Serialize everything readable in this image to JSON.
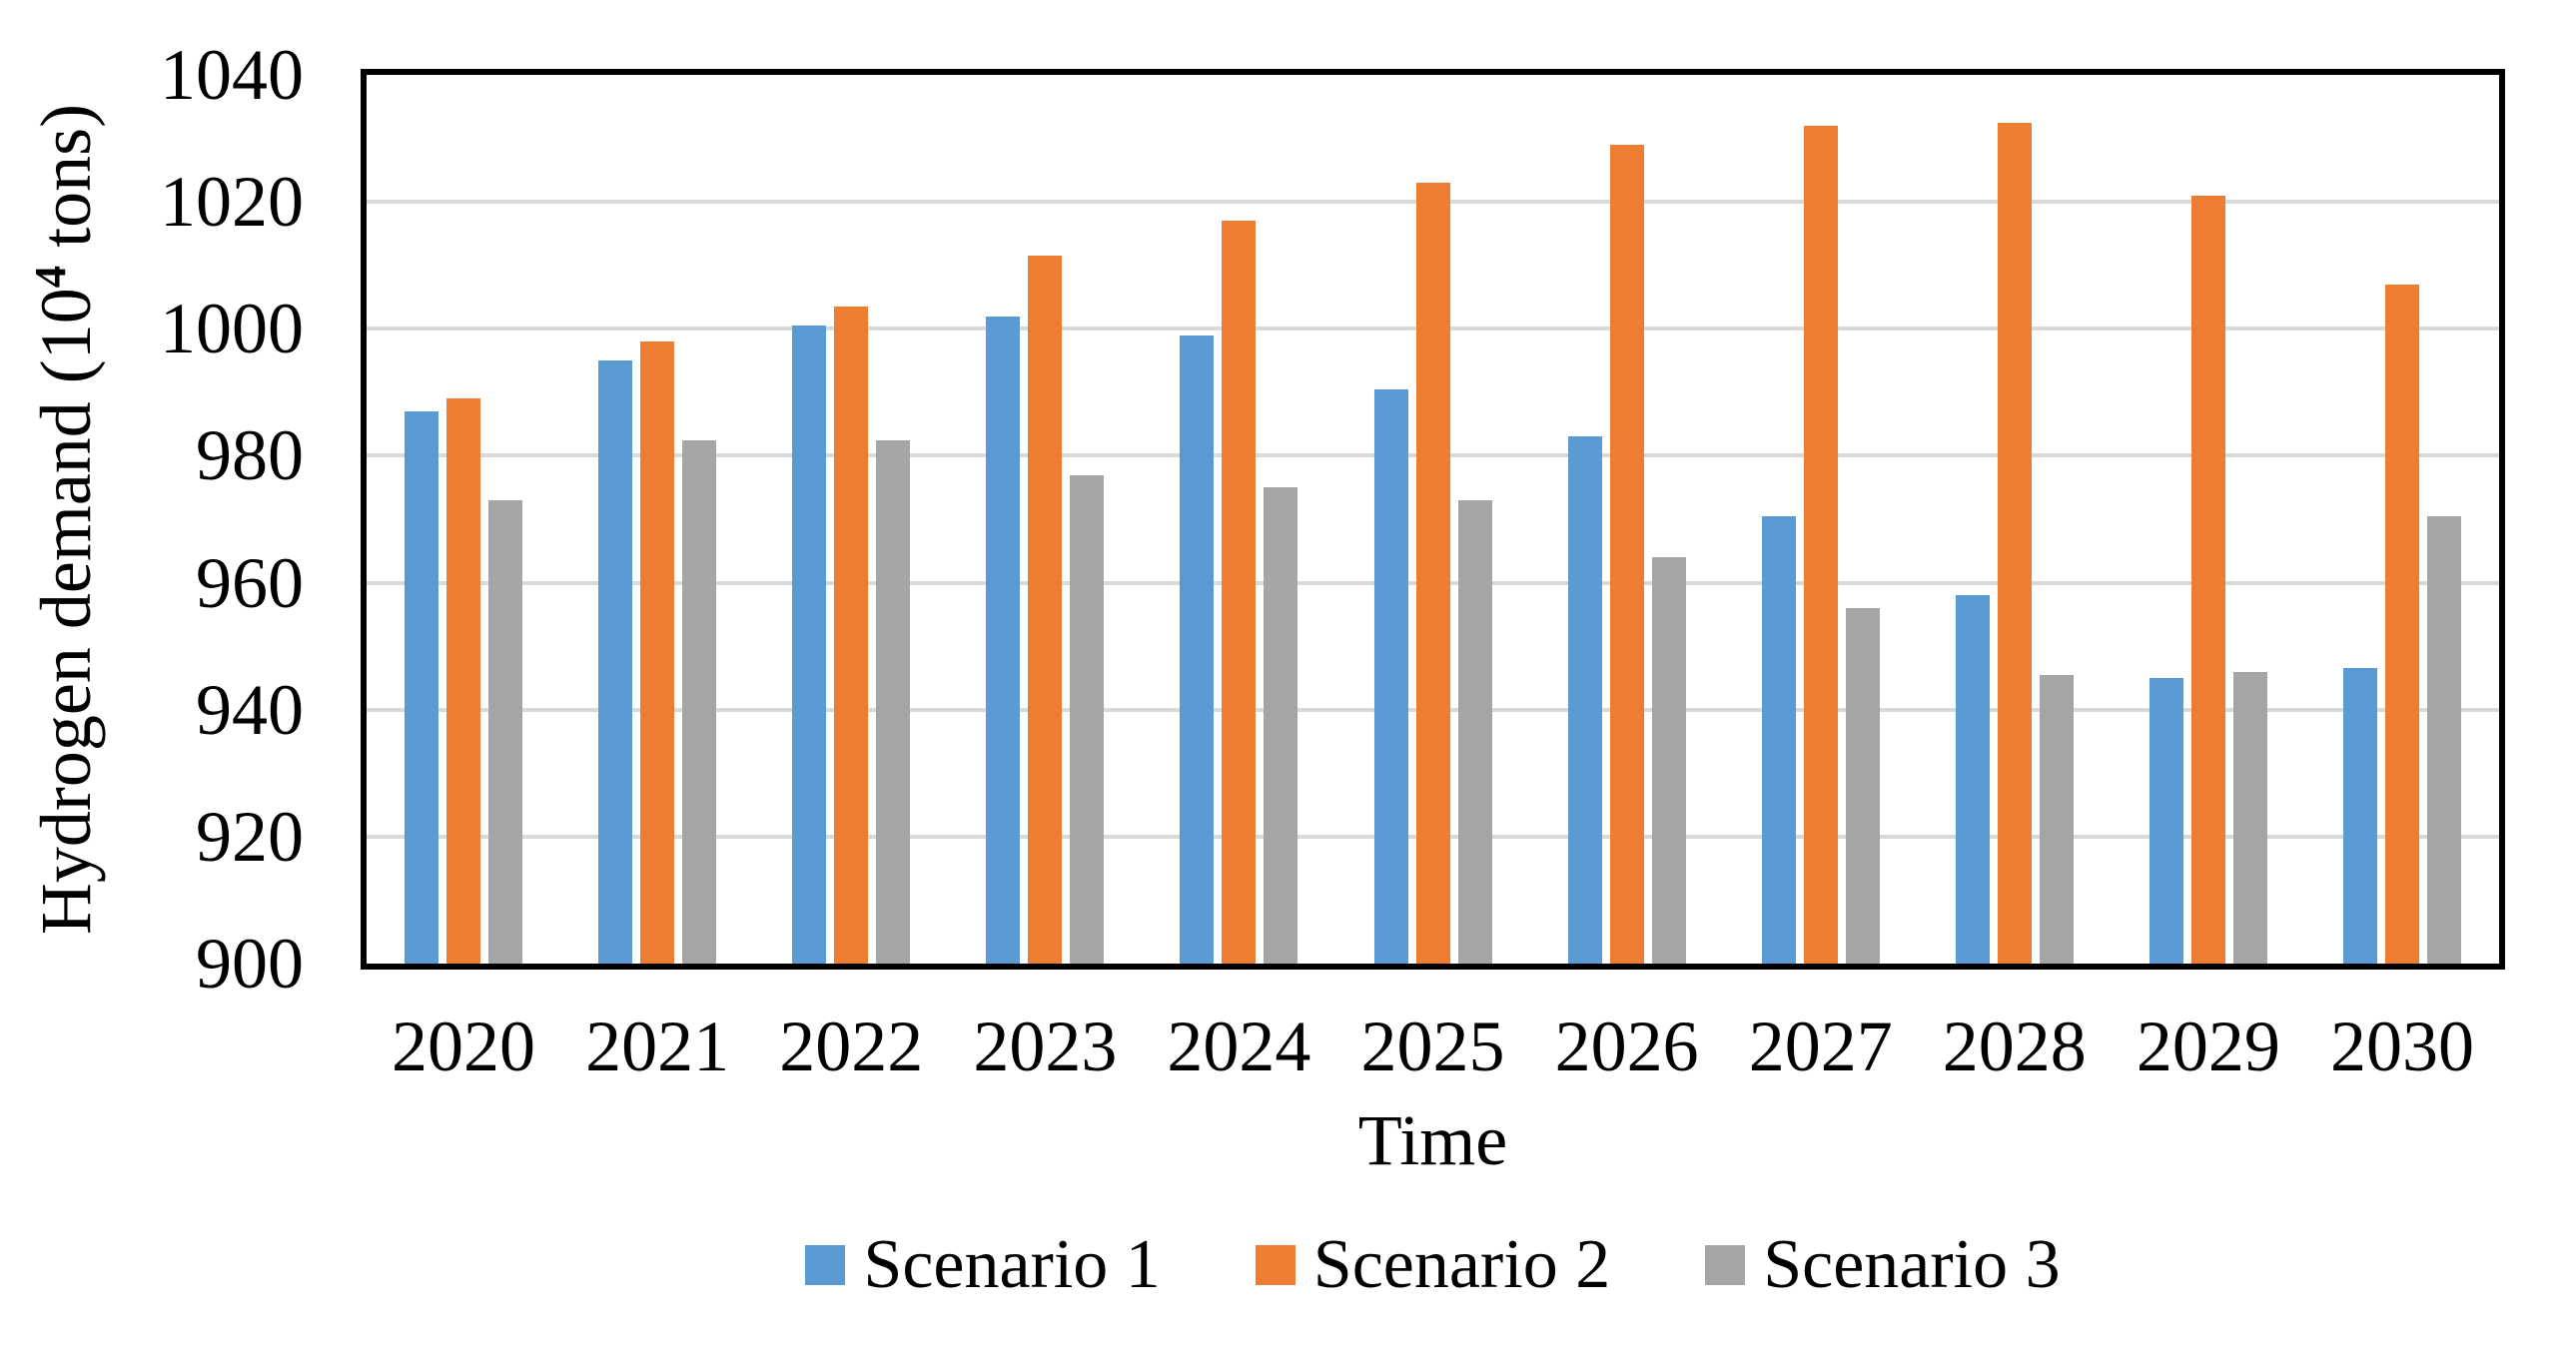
{
  "chart_data": {
    "type": "bar",
    "title": "",
    "xlabel": "Time",
    "ylabel": "Hydrogen demand (10⁴ tons)",
    "ylabel_parts": {
      "prefix": "Hydrogen demand (10",
      "superscript": "4",
      "suffix": " tons)"
    },
    "categories": [
      "2020",
      "2021",
      "2022",
      "2023",
      "2024",
      "2025",
      "2026",
      "2027",
      "2028",
      "2029",
      "2030"
    ],
    "series": [
      {
        "name": "Scenario 1",
        "color": "#5B9BD5",
        "values": [
          987,
          995,
          1000.5,
          1002,
          999,
          990.5,
          983,
          970.5,
          958,
          945,
          946.5
        ]
      },
      {
        "name": "Scenario 2",
        "color": "#ED7D31",
        "values": [
          989,
          998,
          1003.5,
          1011.5,
          1017,
          1023,
          1029,
          1032,
          1032.5,
          1021,
          1007
        ]
      },
      {
        "name": "Scenario 3",
        "color": "#A5A5A5",
        "values": [
          973,
          982.5,
          982.5,
          977,
          975,
          973,
          964,
          956,
          945.5,
          946,
          970.5
        ]
      }
    ],
    "ylim": [
      900,
      1040
    ],
    "yticks": [
      900,
      920,
      940,
      960,
      980,
      1000,
      1020,
      1040
    ],
    "ytick_step": 20,
    "grid": "horizontal",
    "gridline_color": "#D9D9D9",
    "axis_border_color": "#000000",
    "background_color": "#FFFFFF",
    "legend_position": "bottom",
    "legend_labels": [
      "Scenario 1",
      "Scenario 2",
      "Scenario 3"
    ]
  }
}
